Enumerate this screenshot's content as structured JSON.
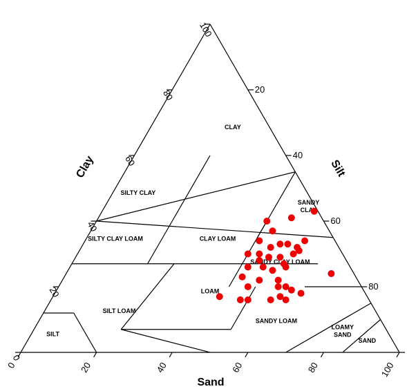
{
  "chart_data": {
    "type": "scatter",
    "subtype": "ternary-soil-texture-triangle",
    "axes": {
      "sand": {
        "label": "Sand",
        "ticks": [
          "0",
          "20",
          "40",
          "60",
          "80",
          "100"
        ]
      },
      "silt": {
        "label": "Silt",
        "ticks": [
          "100",
          "80",
          "60",
          "40",
          "20"
        ]
      },
      "clay": {
        "label": "Clay",
        "ticks": [
          "0",
          "20",
          "40",
          "60",
          "80",
          "100"
        ]
      }
    },
    "regions": [
      "CLAY",
      "SILTY CLAY",
      "SANDY CLAY",
      "SILTY CLAY LOAM",
      "CLAY LOAM",
      "SANDY CLAY LOAM",
      "LOAM",
      "SILT LOAM",
      "SILT",
      "SANDY LOAM",
      "LOAMY SAND",
      "SAND"
    ],
    "points": [
      {
        "sand": 45,
        "clay": 40
      },
      {
        "sand": 51,
        "clay": 41
      },
      {
        "sand": 56,
        "clay": 43
      },
      {
        "sand": 48,
        "clay": 37
      },
      {
        "sand": 58,
        "clay": 34
      },
      {
        "sand": 46,
        "clay": 34
      },
      {
        "sand": 50,
        "clay": 32
      },
      {
        "sand": 52,
        "clay": 33
      },
      {
        "sand": 54,
        "clay": 33
      },
      {
        "sand": 57,
        "clay": 32
      },
      {
        "sand": 45,
        "clay": 30
      },
      {
        "sand": 48,
        "clay": 30
      },
      {
        "sand": 51,
        "clay": 29
      },
      {
        "sand": 54,
        "clay": 29
      },
      {
        "sand": 57,
        "clay": 30
      },
      {
        "sand": 58,
        "clay": 31
      },
      {
        "sand": 49,
        "clay": 28
      },
      {
        "sand": 56,
        "clay": 27
      },
      {
        "sand": 47,
        "clay": 26
      },
      {
        "sand": 51,
        "clay": 26
      },
      {
        "sand": 54,
        "clay": 25
      },
      {
        "sand": 57,
        "clay": 26
      },
      {
        "sand": 47,
        "clay": 23
      },
      {
        "sand": 52,
        "clay": 22
      },
      {
        "sand": 57,
        "clay": 22
      },
      {
        "sand": 50,
        "clay": 20
      },
      {
        "sand": 58,
        "clay": 20
      },
      {
        "sand": 60,
        "clay": 20
      },
      {
        "sand": 62,
        "clay": 19
      },
      {
        "sand": 65,
        "clay": 18
      },
      {
        "sand": 70,
        "clay": 24
      },
      {
        "sand": 44,
        "clay": 17
      },
      {
        "sand": 50,
        "clay": 16
      },
      {
        "sand": 52,
        "clay": 16
      },
      {
        "sand": 58,
        "clay": 16
      },
      {
        "sand": 60,
        "clay": 17
      },
      {
        "sand": 62,
        "clay": 16
      }
    ],
    "point_color": "#ee0000"
  }
}
